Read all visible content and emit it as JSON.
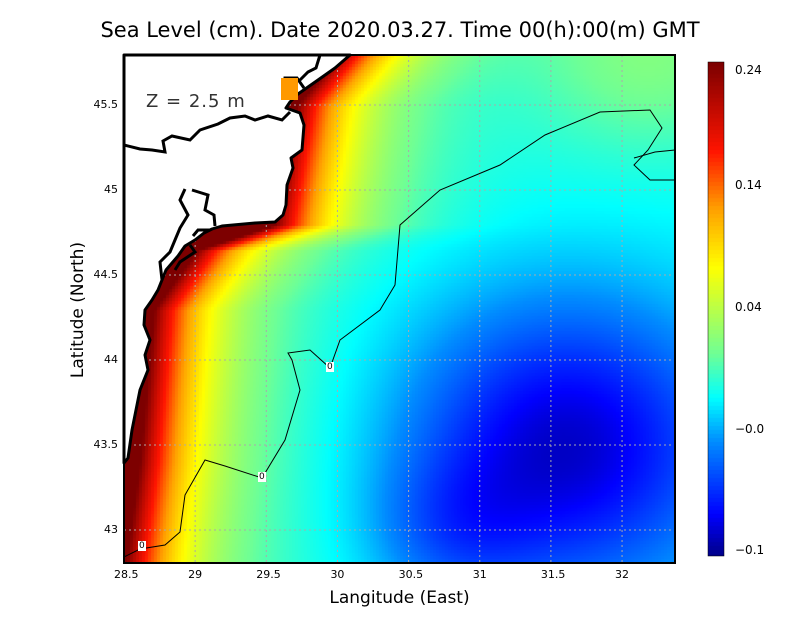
{
  "title": "Sea Level (cm). Date 2020.03.27. Time 00(h):00(m) GMT",
  "depth_label": "Z  =  2.5  m",
  "xlabel": "Langitude (East)",
  "ylabel": "Latitude (North)",
  "chart_data": {
    "type": "heatmap",
    "title": "Sea Level (cm). Date 2020.03.27. Time 00(h):00(m) GMT",
    "xlabel": "Langitude (East)",
    "ylabel": "Latitude (North)",
    "xlim": [
      28.5,
      32.37
    ],
    "ylim": [
      42.81,
      45.79
    ],
    "x_ticks": [
      "28.5",
      "29",
      "29.5",
      "30",
      "30.5",
      "31",
      "31.5",
      "32"
    ],
    "y_ticks": [
      "43",
      "43.5",
      "44",
      "44.5",
      "45",
      "45.5"
    ],
    "colorbar_ticks": [
      "0.24",
      "0.14",
      "0.04",
      "−0.0",
      "−0.1"
    ],
    "colorbar_range": [
      -0.1,
      0.24
    ],
    "contour_labels": [
      "0",
      "0",
      "0"
    ],
    "grid": true
  },
  "colors": {
    "land": "#ffffff",
    "coast": "#000000",
    "grid": "#aaaaaa"
  }
}
